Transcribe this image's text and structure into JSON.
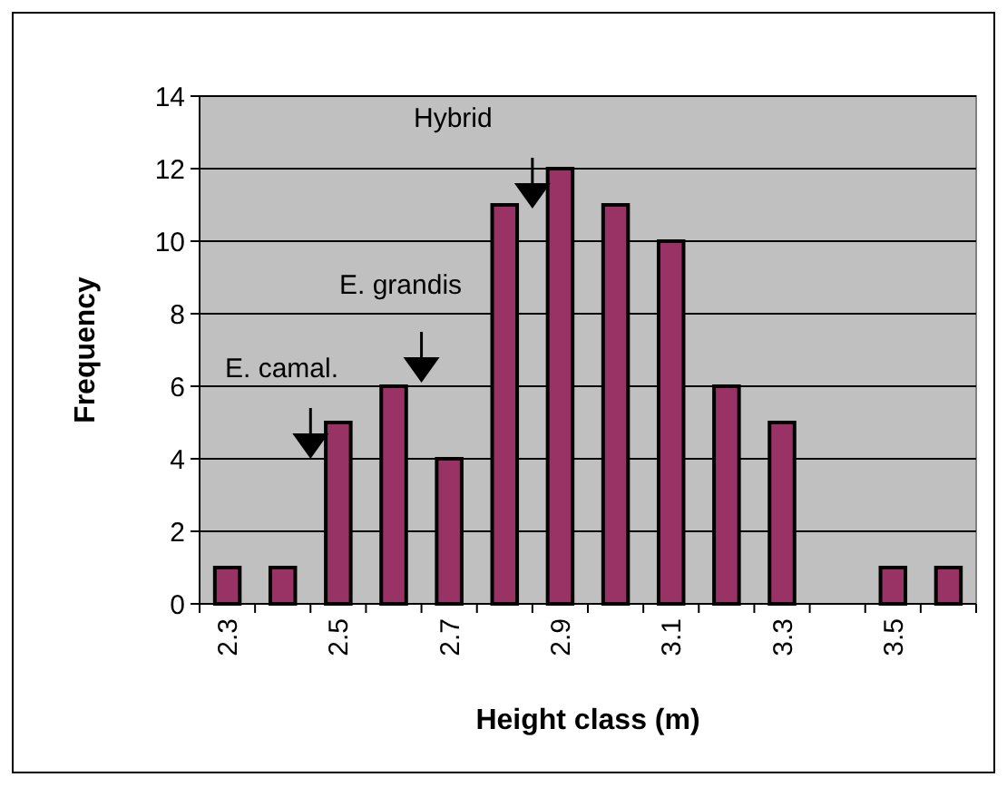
{
  "chart_data": {
    "type": "bar",
    "xlabel": "Height class (m)",
    "ylabel": "Frequency",
    "categories": [
      "2.3",
      null,
      "2.5",
      null,
      "2.7",
      null,
      "2.9",
      null,
      "3.1",
      null,
      "3.3",
      null,
      "3.5",
      null
    ],
    "values": [
      1,
      1,
      5,
      6,
      4,
      11,
      12,
      11,
      10,
      6,
      5,
      0,
      1,
      1
    ],
    "color": "#993366",
    "ylim": [
      0,
      14
    ],
    "yticks": [
      0,
      2,
      4,
      6,
      8,
      10,
      12,
      14
    ],
    "grid": "y",
    "annotations": [
      "E. camal.",
      "E. grandis",
      "Hybrid"
    ]
  }
}
